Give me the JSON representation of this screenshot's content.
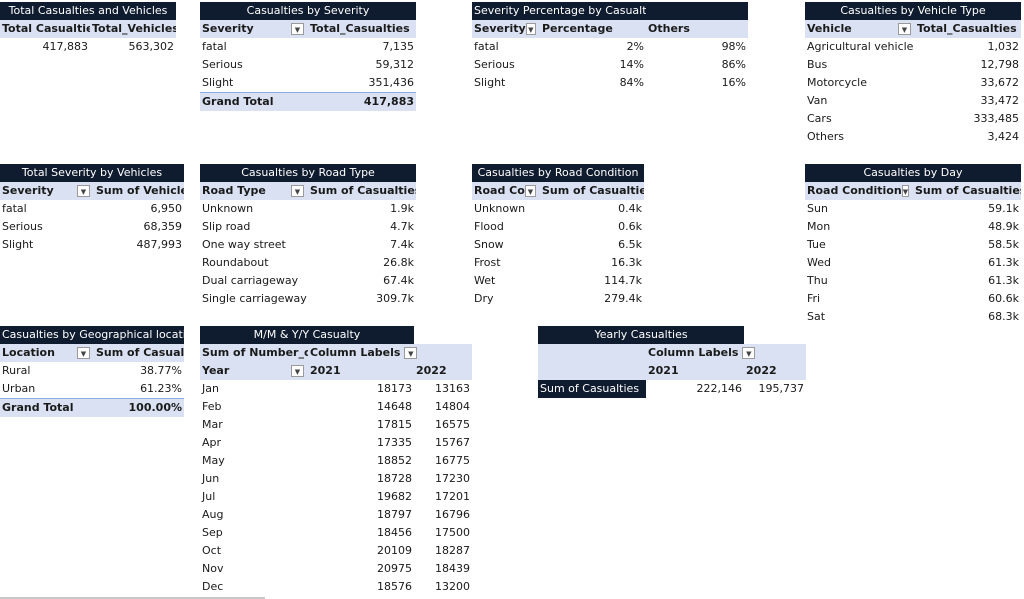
{
  "total_casualties_vehicles": {
    "title": "Total Casualties and Vehicles",
    "headers": [
      "Total Casualties",
      "Total_Vehicles"
    ],
    "values": [
      "417,883",
      "563,302"
    ]
  },
  "casualties_by_severity": {
    "title": "Casualties by Severity",
    "headers": [
      "Severity",
      "Total_Casualties"
    ],
    "rows": [
      [
        "fatal",
        "7,135"
      ],
      [
        "Serious",
        "59,312"
      ],
      [
        "Slight",
        "351,436"
      ]
    ],
    "grand_total": [
      "Grand Total",
      "417,883"
    ]
  },
  "severity_percentage": {
    "title": "Severity Percentage by Casualty",
    "headers": [
      "Severity",
      "Percentage",
      "Others"
    ],
    "rows": [
      [
        "fatal",
        "2%",
        "98%"
      ],
      [
        "Serious",
        "14%",
        "86%"
      ],
      [
        "Slight",
        "84%",
        "16%"
      ]
    ]
  },
  "casualties_by_vehicle_type": {
    "title": "Casualties by Vehicle Type",
    "headers": [
      "Vehicle",
      "Total_Casualties"
    ],
    "rows": [
      [
        "Agricultural vehicle",
        "1,032"
      ],
      [
        "Bus",
        "12,798"
      ],
      [
        "Motorcycle",
        "33,672"
      ],
      [
        "Van",
        "33,472"
      ],
      [
        "Cars",
        "333,485"
      ],
      [
        "Others",
        "3,424"
      ]
    ]
  },
  "total_severity_by_vehicles": {
    "title": "Total Severity by Vehicles",
    "headers": [
      "Severity",
      "Sum of Vehicles"
    ],
    "rows": [
      [
        "fatal",
        "6,950"
      ],
      [
        "Serious",
        "68,359"
      ],
      [
        "Slight",
        "487,993"
      ]
    ]
  },
  "casualties_by_road_type": {
    "title": "Casualties by Road Type",
    "headers": [
      "Road Type",
      "Sum of Casualties"
    ],
    "rows": [
      [
        "Unknown",
        "1.9k"
      ],
      [
        "Slip road",
        "4.7k"
      ],
      [
        "One way street",
        "7.4k"
      ],
      [
        "Roundabout",
        "26.8k"
      ],
      [
        "Dual carriageway",
        "67.4k"
      ],
      [
        "Single carriageway",
        "309.7k"
      ]
    ]
  },
  "casualties_by_road_condition": {
    "title": "Casualties by Road Condition",
    "headers": [
      "Road Co",
      "Sum of Casualties"
    ],
    "rows": [
      [
        "Unknown",
        "0.4k"
      ],
      [
        "Flood",
        "0.6k"
      ],
      [
        "Snow",
        "6.5k"
      ],
      [
        "Frost",
        "16.3k"
      ],
      [
        "Wet",
        "114.7k"
      ],
      [
        "Dry",
        "279.4k"
      ]
    ]
  },
  "casualties_by_day": {
    "title": "Casualties by Day",
    "headers": [
      "Road Condition",
      "Sum of Casualties"
    ],
    "rows": [
      [
        "Sun",
        "59.1k"
      ],
      [
        "Mon",
        "48.9k"
      ],
      [
        "Tue",
        "58.5k"
      ],
      [
        "Wed",
        "61.3k"
      ],
      [
        "Thu",
        "61.3k"
      ],
      [
        "Fri",
        "60.6k"
      ],
      [
        "Sat",
        "68.3k"
      ]
    ]
  },
  "casualties_by_geo": {
    "title": "Casualties by Geographical location",
    "headers": [
      "Location",
      "Sum of Casualties"
    ],
    "rows": [
      [
        "Rural",
        "38.77%"
      ],
      [
        "Urban",
        "61.23%"
      ]
    ],
    "grand_total": [
      "Grand Total",
      "100.00%"
    ]
  },
  "mm_yy_casualty": {
    "title": "M/M & Y/Y Casualty",
    "corner": "Sum of Number_of_",
    "col_labels": "Column Labels",
    "row_header": "Year",
    "years": [
      "2021",
      "2022"
    ],
    "rows": [
      [
        "Jan",
        "18173",
        "13163"
      ],
      [
        "Feb",
        "14648",
        "14804"
      ],
      [
        "Mar",
        "17815",
        "16575"
      ],
      [
        "Apr",
        "17335",
        "15767"
      ],
      [
        "May",
        "18852",
        "16775"
      ],
      [
        "Jun",
        "18728",
        "17230"
      ],
      [
        "Jul",
        "19682",
        "17201"
      ],
      [
        "Aug",
        "18797",
        "16796"
      ],
      [
        "Sep",
        "18456",
        "17500"
      ],
      [
        "Oct",
        "20109",
        "18287"
      ],
      [
        "Nov",
        "20975",
        "18439"
      ],
      [
        "Dec",
        "18576",
        "13200"
      ]
    ]
  },
  "yearly_casualties": {
    "title": "Yearly Casualties",
    "col_labels": "Column Labels",
    "years": [
      "2021",
      "2022"
    ],
    "row_label": "Sum of Casualties",
    "values": [
      "222,146",
      "195,737"
    ]
  },
  "icons": {
    "dropdown": "dropdown-arrow-icon",
    "sort": "sort-filter-icon",
    "filter": "filter-active-icon"
  },
  "colors": {
    "title_bg": "#0f1b2e",
    "header_bg": "#d9e1f2"
  }
}
